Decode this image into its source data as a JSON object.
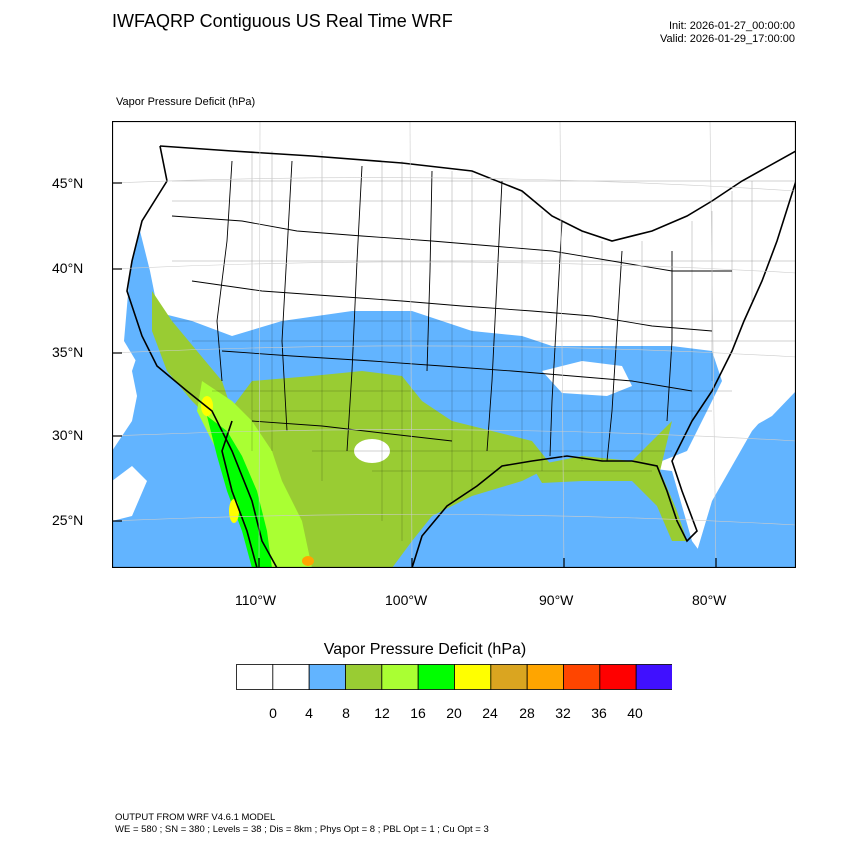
{
  "header": {
    "title": "IWFAQRP Contiguous US Real Time WRF",
    "init": "Init: 2026-01-27_00:00:00",
    "valid": "Valid: 2026-01-29_17:00:00"
  },
  "map": {
    "variable_label": "Vapor Pressure Deficit   (hPa)",
    "lat_labels": [
      "45°N",
      "40°N",
      "35°N",
      "30°N",
      "25°N"
    ],
    "lon_labels": [
      "110°W",
      "100°W",
      "90°W",
      "80°W"
    ],
    "colors": {
      "ocean_low": "#62b4ff",
      "land_white": "#ffffff",
      "olive": "#99cc33",
      "light_green": "#aaff33",
      "green": "#00ff00",
      "yellow": "#ffff00"
    }
  },
  "colorbar": {
    "title": "Vapor Pressure Deficit  (hPa)",
    "colors": [
      "#ffffff",
      "#ffffff",
      "#62b4ff",
      "#99cc33",
      "#aaff33",
      "#00ff00",
      "#ffff00",
      "#daa520",
      "#ffa500",
      "#ff4500",
      "#ff0000",
      "#4010ff"
    ],
    "labels": [
      "0",
      "4",
      "8",
      "12",
      "16",
      "20",
      "24",
      "28",
      "32",
      "36",
      "40"
    ]
  },
  "footer": {
    "line1": "OUTPUT FROM WRF V4.6.1 MODEL",
    "line2": "WE = 580 ; SN = 380 ; Levels = 38 ; Dis = 8km ; Phys Opt = 8 ; PBL Opt = 1 ; Cu Opt = 3"
  }
}
